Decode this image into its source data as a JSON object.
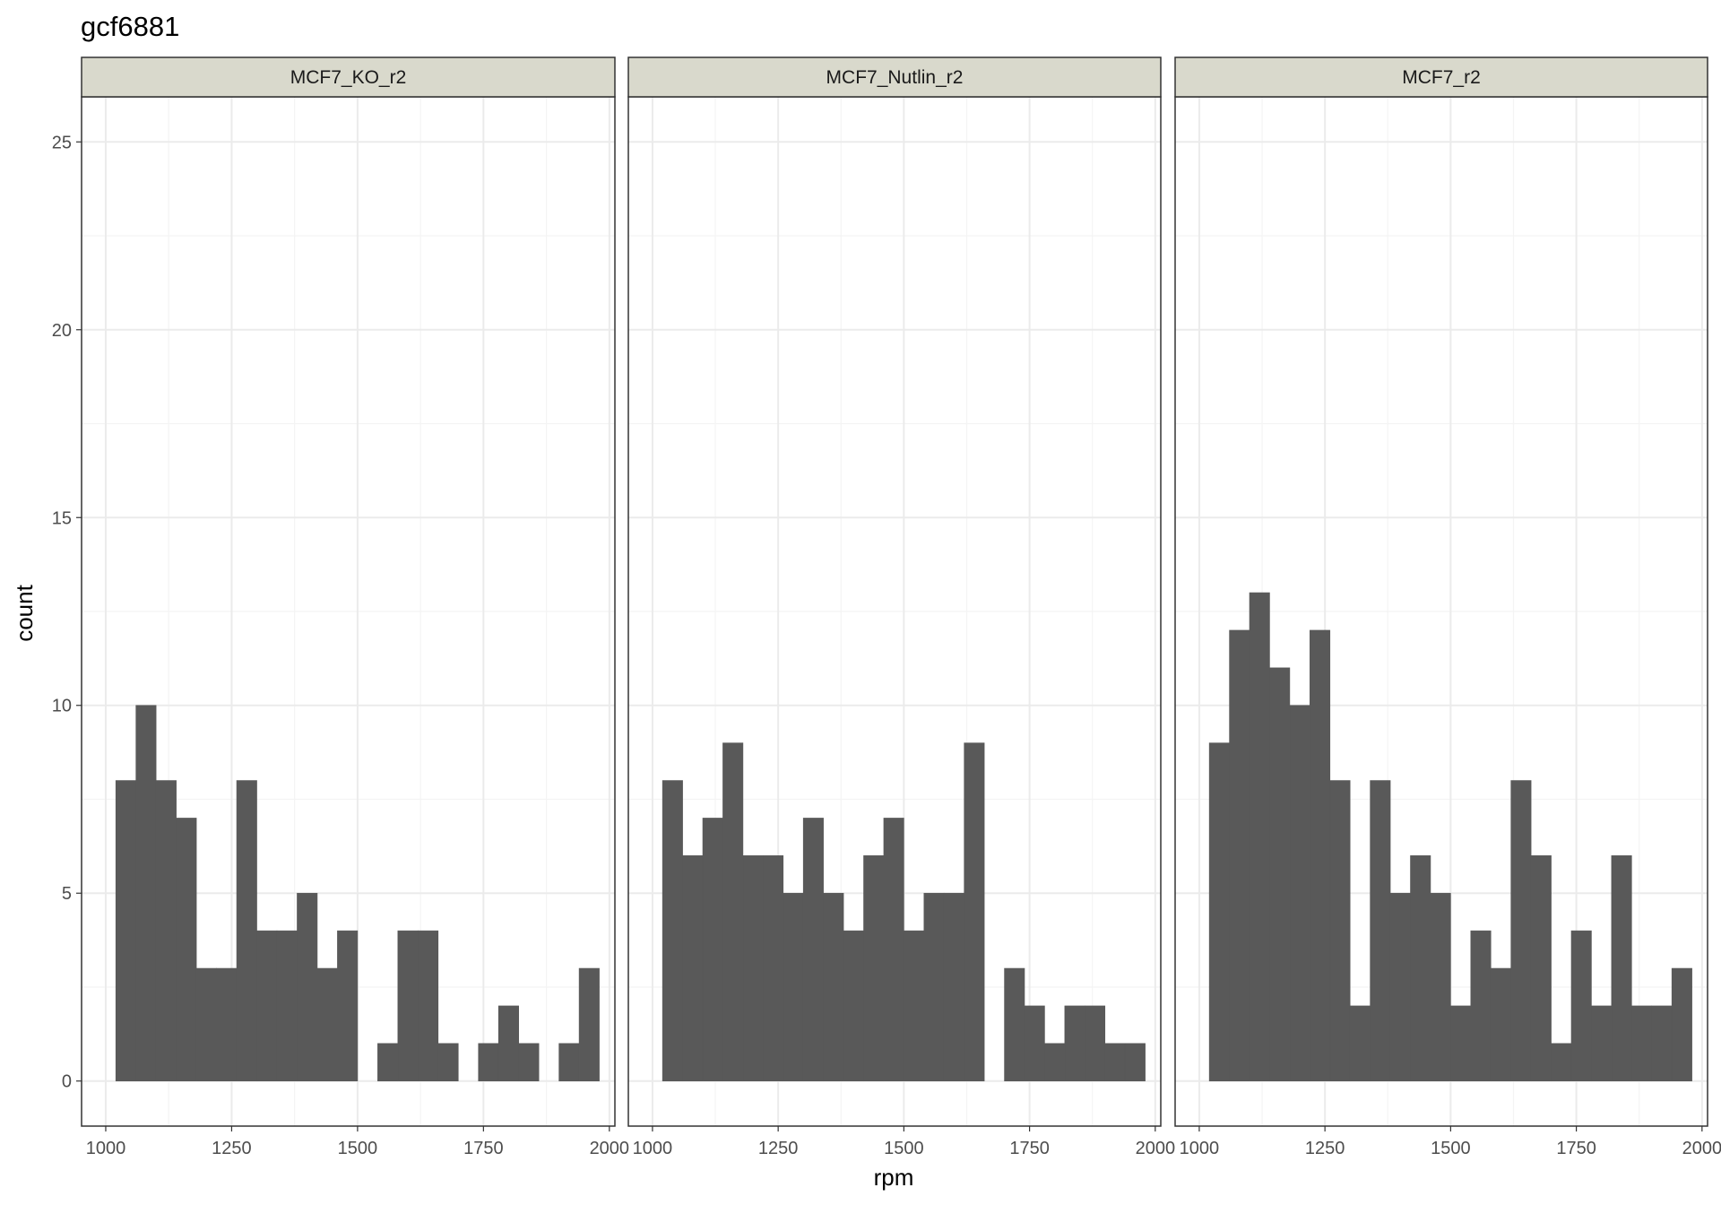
{
  "chart_data": {
    "type": "bar",
    "subtype": "faceted-histogram",
    "title": "gcf6881",
    "xlabel": "rpm",
    "ylabel": "count",
    "xlim": [
      952,
      2011
    ],
    "ylim": [
      -1.2,
      26.2
    ],
    "x_ticks": [
      1000,
      1250,
      1500,
      1750,
      2000
    ],
    "x_tick_labels": [
      "1000",
      "1250",
      "1500",
      "1750",
      "2000"
    ],
    "y_ticks": [
      0,
      5,
      10,
      15,
      20,
      25
    ],
    "y_tick_labels": [
      "0",
      "5",
      "10",
      "15",
      "20",
      "25"
    ],
    "bin_start": 1020,
    "bin_width": 40,
    "grid": true,
    "colors": {
      "bar": "#595959",
      "panel_border": "#333333",
      "strip_fill": "#d9d9cc",
      "grid_major": "#ebebeb",
      "grid_minor": "#f4f4f4"
    },
    "facets": [
      {
        "name": "MCF7_KO_r2",
        "values": [
          8,
          10,
          8,
          7,
          3,
          3,
          8,
          4,
          4,
          5,
          3,
          4,
          0,
          1,
          4,
          4,
          1,
          0,
          1,
          2,
          1,
          0,
          1,
          3
        ]
      },
      {
        "name": "MCF7_Nutlin_r2",
        "values": [
          8,
          6,
          7,
          9,
          6,
          6,
          5,
          7,
          5,
          4,
          6,
          7,
          4,
          5,
          5,
          9,
          0,
          3,
          2,
          1,
          2,
          2,
          1,
          1
        ]
      },
      {
        "name": "MCF7_r2",
        "values": [
          9,
          12,
          13,
          11,
          10,
          12,
          8,
          2,
          8,
          5,
          6,
          5,
          2,
          4,
          3,
          8,
          6,
          1,
          4,
          2,
          6,
          2,
          2,
          3
        ]
      }
    ]
  }
}
